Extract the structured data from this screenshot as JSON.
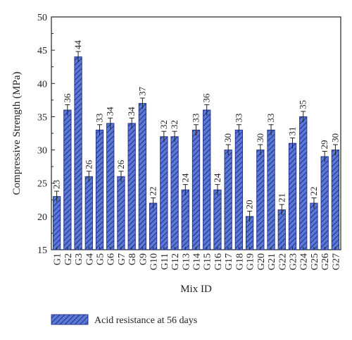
{
  "chart_data": {
    "type": "bar",
    "xlabel": "Mix ID",
    "ylabel": "Compressive Strength (MPa)",
    "ylim": [
      15,
      50
    ],
    "yticks": [
      15,
      20,
      25,
      30,
      35,
      40,
      45,
      50
    ],
    "grid": false,
    "legend_position": "bottom-left",
    "categories": [
      "G1",
      "G2",
      "G3",
      "G4",
      "G5",
      "G6",
      "G7",
      "G8",
      "G9",
      "G10",
      "G11",
      "G12",
      "G13",
      "G14",
      "G15",
      "G16",
      "G17",
      "G18",
      "G19",
      "G20",
      "G21",
      "G22",
      "G23",
      "G24",
      "G25",
      "G26",
      "G27"
    ],
    "series": [
      {
        "name": "Acid resistance at 56 days",
        "values": [
          23,
          36,
          44,
          26,
          33,
          34,
          26,
          34,
          37,
          22,
          32,
          32,
          24,
          33,
          36,
          24,
          30,
          33,
          20,
          30,
          33,
          21,
          31,
          35,
          22,
          29,
          30
        ],
        "error": 0.8,
        "fill": "#5b78d4",
        "hatch": "#1f2f8a"
      }
    ]
  }
}
